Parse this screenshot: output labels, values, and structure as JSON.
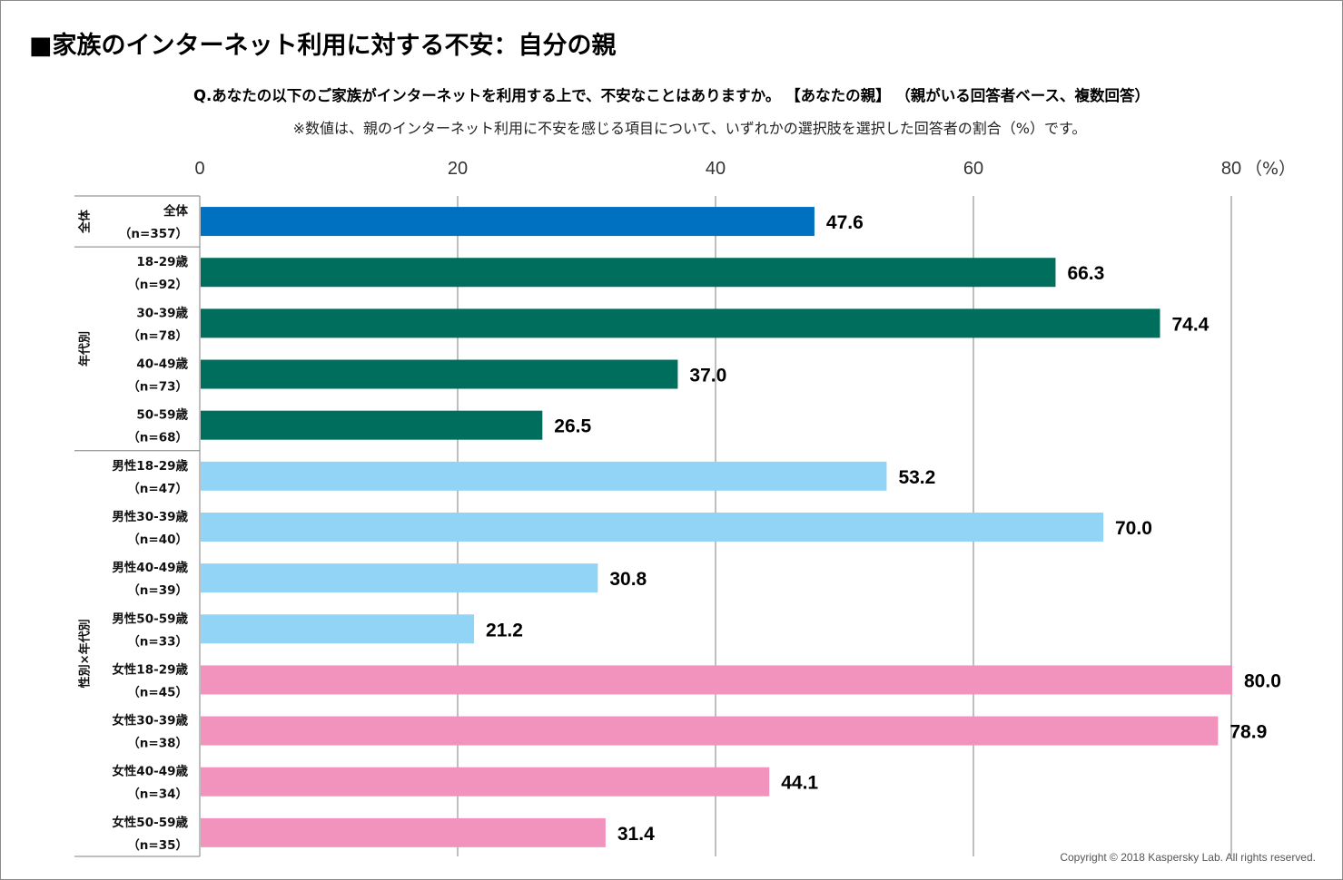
{
  "title": "■家族のインターネット利用に対する不安：自分の親",
  "question": "Q.あなたの以下のご家族がインターネットを利用する上で、不安なことはありますか。 【あなたの親】 （親がいる回答者ベース、複数回答）",
  "note": "※数値は、親のインターネット利用に不安を感じる項目について、いずれかの選択肢を選択した回答者の割合（%）です。",
  "copyright": "Copyright © 2018 Kaspersky Lab. All rights reserved.",
  "chart_data": {
    "type": "bar",
    "orientation": "horizontal",
    "xlim": [
      0,
      80
    ],
    "ticks": [
      "0",
      "20",
      "40",
      "60",
      "80"
    ],
    "unit_label": "（%）",
    "grid": true,
    "groups": [
      {
        "label": "全体",
        "start": 0,
        "count": 1
      },
      {
        "label": "年代別",
        "start": 1,
        "count": 4
      },
      {
        "label": "性別×年代別",
        "start": 5,
        "count": 8
      }
    ],
    "categories": [
      {
        "name": "全体",
        "n": "（n=357）",
        "value": 47.6,
        "label": "47.6",
        "color": "#0070C0"
      },
      {
        "name": "18-29歳",
        "n": "（n=92）",
        "value": 66.3,
        "label": "66.3",
        "color": "#006E5C"
      },
      {
        "name": "30-39歳",
        "n": "（n=78）",
        "value": 74.4,
        "label": "74.4",
        "color": "#006E5C"
      },
      {
        "name": "40-49歳",
        "n": "（n=73）",
        "value": 37.0,
        "label": "37.0",
        "color": "#006E5C"
      },
      {
        "name": "50-59歳",
        "n": "（n=68）",
        "value": 26.5,
        "label": "26.5",
        "color": "#006E5C"
      },
      {
        "name": "男性18-29歳",
        "n": "（n=47）",
        "value": 53.2,
        "label": "53.2",
        "color": "#92D4F5"
      },
      {
        "name": "男性30-39歳",
        "n": "（n=40）",
        "value": 70.0,
        "label": "70.0",
        "color": "#92D4F5"
      },
      {
        "name": "男性40-49歳",
        "n": "（n=39）",
        "value": 30.8,
        "label": "30.8",
        "color": "#92D4F5"
      },
      {
        "name": "男性50-59歳",
        "n": "（n=33）",
        "value": 21.2,
        "label": "21.2",
        "color": "#92D4F5"
      },
      {
        "name": "女性18-29歳",
        "n": "（n=45）",
        "value": 80.0,
        "label": "80.0",
        "color": "#F193BC"
      },
      {
        "name": "女性30-39歳",
        "n": "（n=38）",
        "value": 78.9,
        "label": "78.9",
        "color": "#F193BC"
      },
      {
        "name": "女性40-49歳",
        "n": "（n=34）",
        "value": 44.1,
        "label": "44.1",
        "color": "#F193BC"
      },
      {
        "name": "女性50-59歳",
        "n": "（n=35）",
        "value": 31.4,
        "label": "31.4",
        "color": "#F193BC"
      }
    ]
  }
}
